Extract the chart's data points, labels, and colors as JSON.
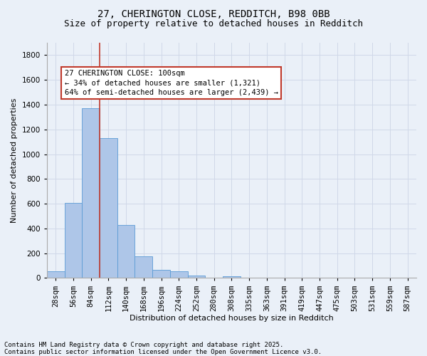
{
  "title1": "27, CHERINGTON CLOSE, REDDITCH, B98 0BB",
  "title2": "Size of property relative to detached houses in Redditch",
  "xlabel": "Distribution of detached houses by size in Redditch",
  "ylabel": "Number of detached properties",
  "categories": [
    "28sqm",
    "56sqm",
    "84sqm",
    "112sqm",
    "140sqm",
    "168sqm",
    "196sqm",
    "224sqm",
    "252sqm",
    "280sqm",
    "308sqm",
    "335sqm",
    "363sqm",
    "391sqm",
    "419sqm",
    "447sqm",
    "475sqm",
    "503sqm",
    "531sqm",
    "559sqm",
    "587sqm"
  ],
  "values": [
    55,
    605,
    1370,
    1130,
    430,
    175,
    65,
    55,
    20,
    0,
    15,
    0,
    0,
    0,
    0,
    0,
    0,
    0,
    0,
    0,
    0
  ],
  "bar_color": "#aec6e8",
  "bar_edge_color": "#5b9bd5",
  "grid_color": "#d0d8e8",
  "bg_color": "#eaf0f8",
  "vline_color": "#c0392b",
  "vline_index": 2.5,
  "annotation_text": "27 CHERINGTON CLOSE: 100sqm\n← 34% of detached houses are smaller (1,321)\n64% of semi-detached houses are larger (2,439) →",
  "annotation_box_color": "#c0392b",
  "footnote1": "Contains HM Land Registry data © Crown copyright and database right 2025.",
  "footnote2": "Contains public sector information licensed under the Open Government Licence v3.0.",
  "ylim": [
    0,
    1900
  ],
  "yticks": [
    0,
    200,
    400,
    600,
    800,
    1000,
    1200,
    1400,
    1600,
    1800
  ],
  "title1_fontsize": 10,
  "title2_fontsize": 9,
  "axis_label_fontsize": 8,
  "tick_fontsize": 7.5,
  "annotation_fontsize": 7.5,
  "footnote_fontsize": 6.5
}
